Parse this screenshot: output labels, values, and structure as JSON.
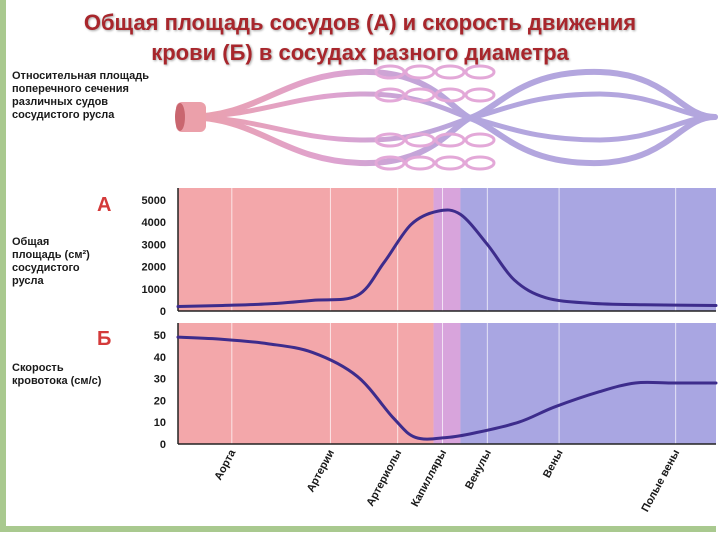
{
  "title_line1": "Общая площадь сосудов (А) и скорость движения",
  "title_line2": "крови (Б) в сосудах разного диаметра",
  "diagram_label": [
    "Относительная площадь",
    "поперечного сечения",
    "различных судов",
    "сосудистого русла"
  ],
  "colors": {
    "arterial_bg": "#f3a7aa",
    "capillary_bg": "#d8a4dc",
    "venous_bg": "#a9a6e2",
    "curve": "#3d2c8c",
    "vessel_arterial": "#eba0aa",
    "vessel_venous": "#b3a6de",
    "title": "#a8262c"
  },
  "chart_data": [
    {
      "type": "line",
      "panel": "А",
      "ylabel_lines": [
        "Общая",
        "площадь (см²)",
        "сосудистого",
        "русла"
      ],
      "ylim": [
        0,
        5000
      ],
      "yticks": [
        "0",
        "1000",
        "2000",
        "3000",
        "4000",
        "5000"
      ],
      "ytick_values": [
        0,
        1000,
        2000,
        3000,
        4000,
        5000
      ],
      "series": [
        {
          "x": [
            0,
            0.5,
            1.0,
            1.5,
            2.0,
            2.3,
            2.6,
            2.9,
            3.15,
            3.45,
            3.75,
            4.1,
            4.6,
            5.2,
            6.0
          ],
          "values": [
            200,
            250,
            320,
            480,
            700,
            2200,
            3900,
            4500,
            4350,
            3000,
            1400,
            600,
            350,
            280,
            250
          ]
        }
      ]
    },
    {
      "type": "line",
      "panel": "Б",
      "ylabel_lines": [
        "Скорость",
        "кровотока (см/с)"
      ],
      "ylim": [
        0,
        50
      ],
      "yticks": [
        "0",
        "10",
        "20",
        "30",
        "40",
        "50"
      ],
      "ytick_values": [
        0,
        10,
        20,
        30,
        40,
        50
      ],
      "series": [
        {
          "x": [
            0,
            0.5,
            1.0,
            1.5,
            2.0,
            2.4,
            2.65,
            3.0,
            3.3,
            3.8,
            4.2,
            4.7,
            5.1,
            5.5,
            6.0
          ],
          "values": [
            49,
            48,
            46,
            42,
            31,
            12,
            3,
            3,
            5,
            10,
            17,
            24,
            28,
            28,
            28
          ]
        }
      ]
    }
  ],
  "categories": [
    "Аорта",
    "Артерии",
    "Артериолы",
    "Капилляры",
    "Венулы",
    "Вены",
    "Полые вены"
  ],
  "category_x": [
    0.6,
    1.7,
    2.45,
    2.95,
    3.45,
    4.25,
    5.55
  ]
}
